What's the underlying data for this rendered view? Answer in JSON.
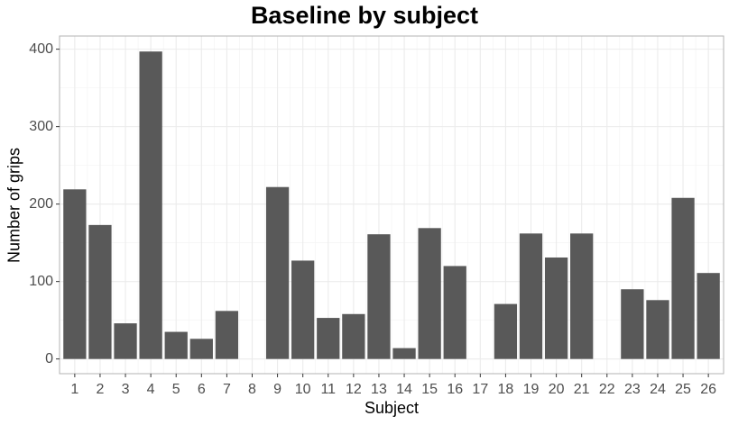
{
  "chart_data": {
    "type": "bar",
    "title": "Baseline by subject",
    "xlabel": "Subject",
    "ylabel": "Number of grips",
    "categories": [
      "1",
      "2",
      "3",
      "4",
      "5",
      "6",
      "7",
      "8",
      "9",
      "10",
      "11",
      "12",
      "13",
      "14",
      "15",
      "16",
      "17",
      "18",
      "19",
      "20",
      "21",
      "22",
      "23",
      "24",
      "25",
      "26"
    ],
    "values": [
      219,
      173,
      46,
      397,
      35,
      26,
      62,
      0,
      222,
      127,
      53,
      58,
      161,
      14,
      169,
      120,
      0,
      71,
      162,
      131,
      162,
      0,
      90,
      76,
      208,
      111
    ],
    "ylim": [
      -19,
      417
    ],
    "yticks": [
      0,
      100,
      200,
      300,
      400
    ],
    "grid": true,
    "bar_color": "#595959",
    "legend": "none"
  }
}
